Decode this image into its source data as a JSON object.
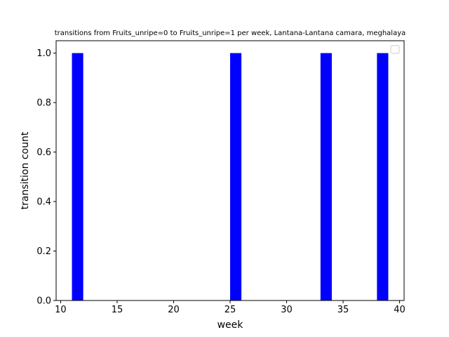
{
  "chart_data": {
    "type": "bar",
    "title": "transitions from Fruits_unripe=0 to Fruits_unripe=1 per week, Lantana-Lantana camara, meghalaya",
    "xlabel": "week",
    "ylabel": "transition count",
    "x": [
      11.5,
      25.5,
      33.5,
      38.5
    ],
    "values": [
      1.0,
      1.0,
      1.0,
      1.0
    ],
    "bar_width": 1.0,
    "bar_color": "#0000ff",
    "xlim": [
      9.6,
      40.4
    ],
    "ylim": [
      0.0,
      1.05
    ],
    "xticks": [
      10,
      15,
      20,
      25,
      30,
      35,
      40
    ],
    "xtick_labels": [
      "10",
      "15",
      "20",
      "25",
      "30",
      "35",
      "40"
    ],
    "yticks": [
      0.0,
      0.2,
      0.4,
      0.6,
      0.8,
      1.0
    ],
    "ytick_labels": [
      "0.0",
      "0.2",
      "0.4",
      "0.6",
      "0.8",
      "1.0"
    ],
    "grid": false,
    "legend": {
      "placement": "top-right",
      "entries": []
    }
  }
}
